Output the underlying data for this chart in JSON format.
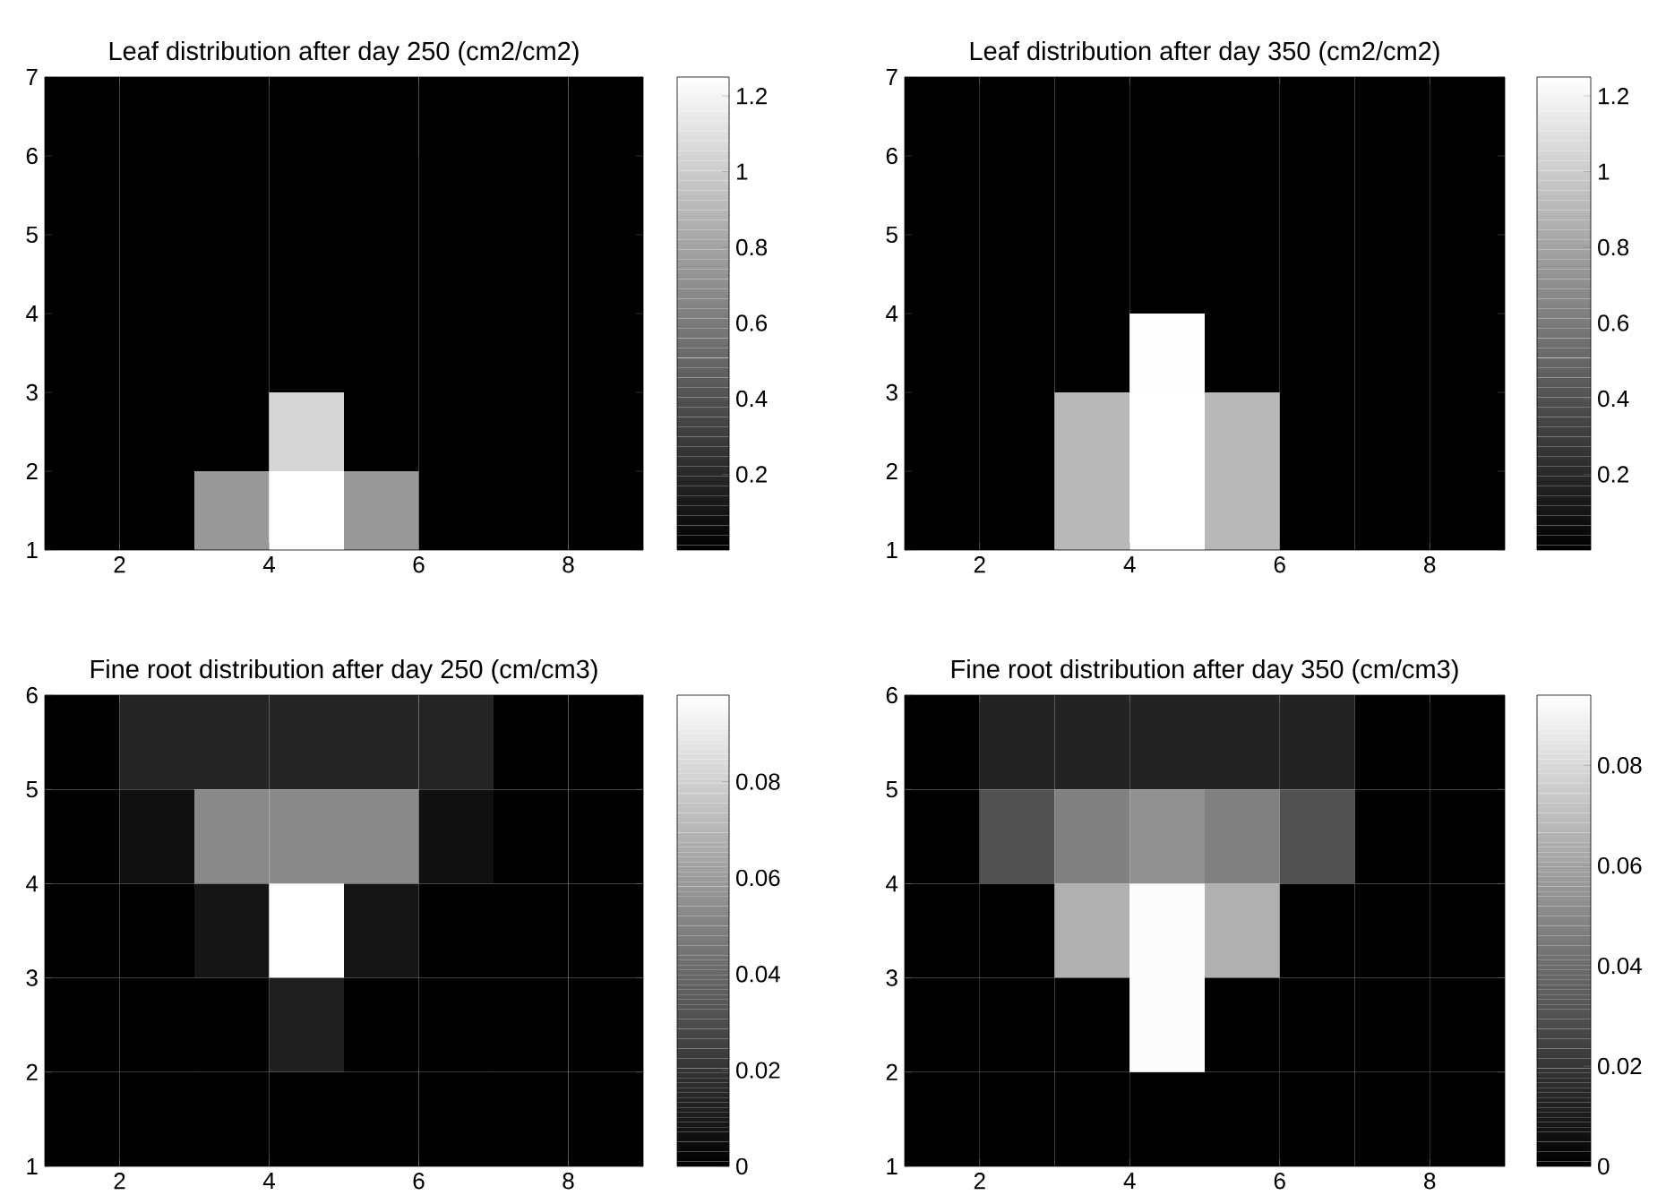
{
  "chart_data": [
    {
      "type": "heatmap",
      "title": "Leaf distribution after day 250 (cm2/cm2)",
      "xlim": [
        1,
        9
      ],
      "ylim": [
        1,
        7
      ],
      "xticks": [
        2,
        4,
        6,
        8
      ],
      "yticks": [
        1,
        2,
        3,
        4,
        5,
        6,
        7
      ],
      "clim": [
        0,
        1.25
      ],
      "cticks": [
        0.2,
        0.4,
        0.6,
        0.8,
        1,
        1.2
      ],
      "cells": [
        [
          0,
          0,
          0,
          0,
          0,
          0,
          0,
          0
        ],
        [
          0,
          0,
          0,
          0,
          0,
          0,
          0,
          0
        ],
        [
          0,
          0,
          0,
          0,
          0,
          0,
          0,
          0
        ],
        [
          0,
          0,
          0,
          0,
          0,
          0,
          0,
          0
        ],
        [
          0,
          0,
          0,
          1.05,
          0,
          0,
          0,
          0
        ],
        [
          0,
          0,
          0.75,
          1.25,
          0.75,
          0,
          0,
          0
        ]
      ]
    },
    {
      "type": "heatmap",
      "title": "Leaf distribution after day 350 (cm2/cm2)",
      "xlim": [
        1,
        9
      ],
      "ylim": [
        1,
        7
      ],
      "xticks": [
        2,
        4,
        6,
        8
      ],
      "yticks": [
        1,
        2,
        3,
        4,
        5,
        6,
        7
      ],
      "clim": [
        0,
        1.25
      ],
      "cticks": [
        0.2,
        0.4,
        0.6,
        0.8,
        1,
        1.2
      ],
      "cells": [
        [
          0,
          0,
          0,
          0,
          0,
          0,
          0,
          0
        ],
        [
          0,
          0,
          0,
          0,
          0,
          0,
          0,
          0
        ],
        [
          0,
          0,
          0,
          0,
          0,
          0,
          0,
          0
        ],
        [
          0,
          0,
          0,
          1.24,
          0,
          0,
          0,
          0
        ],
        [
          0,
          0,
          0.9,
          1.25,
          0.9,
          0,
          0,
          0
        ],
        [
          0,
          0,
          0.9,
          1.25,
          0.9,
          0,
          0,
          0
        ]
      ]
    },
    {
      "type": "heatmap",
      "title": "Fine root distribution after day 250 (cm/cm3)",
      "xlim": [
        1,
        9
      ],
      "ylim": [
        1,
        6
      ],
      "xticks": [
        2,
        4,
        6,
        8
      ],
      "yticks": [
        1,
        2,
        3,
        4,
        5,
        6
      ],
      "clim": [
        0,
        0.098
      ],
      "cticks": [
        0,
        0.02,
        0.04,
        0.06,
        0.08
      ],
      "cells": [
        [
          0,
          0.014,
          0.014,
          0.014,
          0.014,
          0.014,
          0,
          0
        ],
        [
          0,
          0.006,
          0.053,
          0.053,
          0.053,
          0.006,
          0,
          0
        ],
        [
          0,
          0,
          0.008,
          0.098,
          0.008,
          0,
          0,
          0
        ],
        [
          0,
          0,
          0,
          0.012,
          0,
          0,
          0,
          0
        ],
        [
          0,
          0,
          0,
          0,
          0,
          0,
          0,
          0
        ]
      ]
    },
    {
      "type": "heatmap",
      "title": "Fine root distribution after day 350 (cm/cm3)",
      "xlim": [
        1,
        9
      ],
      "ylim": [
        1,
        6
      ],
      "xticks": [
        2,
        4,
        6,
        8
      ],
      "yticks": [
        1,
        2,
        3,
        4,
        5,
        6
      ],
      "clim": [
        0,
        0.094
      ],
      "cticks": [
        0,
        0.02,
        0.04,
        0.06,
        0.08
      ],
      "cells": [
        [
          0,
          0.013,
          0.013,
          0.013,
          0.013,
          0.013,
          0,
          0
        ],
        [
          0,
          0.03,
          0.047,
          0.053,
          0.047,
          0.03,
          0,
          0
        ],
        [
          0,
          0,
          0.065,
          0.093,
          0.065,
          0,
          0,
          0
        ],
        [
          0,
          0,
          0,
          0.093,
          0,
          0,
          0,
          0
        ],
        [
          0,
          0,
          0,
          0,
          0,
          0,
          0,
          0
        ]
      ]
    }
  ]
}
